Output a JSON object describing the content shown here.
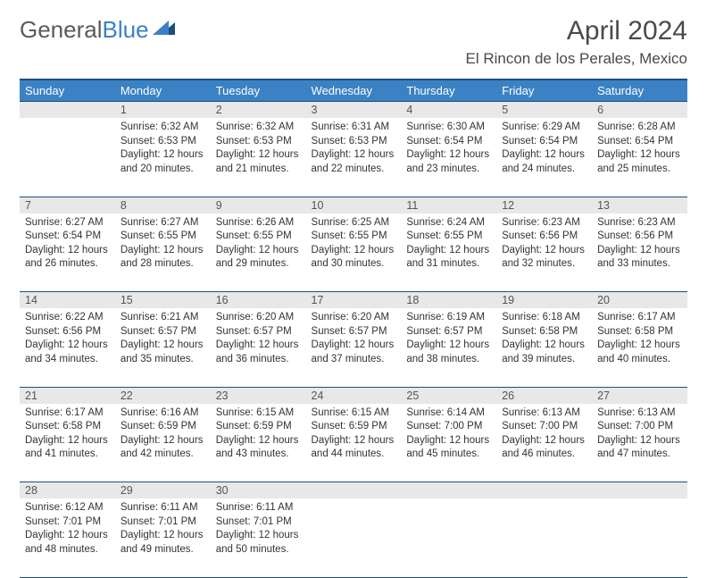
{
  "brand": {
    "general": "General",
    "blue": "Blue"
  },
  "title": "April 2024",
  "location": "El Rincon de los Perales, Mexico",
  "colors": {
    "header_bg": "#3b82c4",
    "header_border": "#1f4e7a",
    "daynum_bg": "#e8e8e8",
    "text": "#333333",
    "logo_gray": "#5a5a5a",
    "logo_blue": "#3b82c4"
  },
  "weekdays": [
    "Sunday",
    "Monday",
    "Tuesday",
    "Wednesday",
    "Thursday",
    "Friday",
    "Saturday"
  ],
  "weeks": [
    {
      "nums": [
        "",
        "1",
        "2",
        "3",
        "4",
        "5",
        "6"
      ],
      "cells": [
        null,
        {
          "sunrise": "Sunrise: 6:32 AM",
          "sunset": "Sunset: 6:53 PM",
          "daylight": "Daylight: 12 hours and 20 minutes."
        },
        {
          "sunrise": "Sunrise: 6:32 AM",
          "sunset": "Sunset: 6:53 PM",
          "daylight": "Daylight: 12 hours and 21 minutes."
        },
        {
          "sunrise": "Sunrise: 6:31 AM",
          "sunset": "Sunset: 6:53 PM",
          "daylight": "Daylight: 12 hours and 22 minutes."
        },
        {
          "sunrise": "Sunrise: 6:30 AM",
          "sunset": "Sunset: 6:54 PM",
          "daylight": "Daylight: 12 hours and 23 minutes."
        },
        {
          "sunrise": "Sunrise: 6:29 AM",
          "sunset": "Sunset: 6:54 PM",
          "daylight": "Daylight: 12 hours and 24 minutes."
        },
        {
          "sunrise": "Sunrise: 6:28 AM",
          "sunset": "Sunset: 6:54 PM",
          "daylight": "Daylight: 12 hours and 25 minutes."
        }
      ]
    },
    {
      "nums": [
        "7",
        "8",
        "9",
        "10",
        "11",
        "12",
        "13"
      ],
      "cells": [
        {
          "sunrise": "Sunrise: 6:27 AM",
          "sunset": "Sunset: 6:54 PM",
          "daylight": "Daylight: 12 hours and 26 minutes."
        },
        {
          "sunrise": "Sunrise: 6:27 AM",
          "sunset": "Sunset: 6:55 PM",
          "daylight": "Daylight: 12 hours and 28 minutes."
        },
        {
          "sunrise": "Sunrise: 6:26 AM",
          "sunset": "Sunset: 6:55 PM",
          "daylight": "Daylight: 12 hours and 29 minutes."
        },
        {
          "sunrise": "Sunrise: 6:25 AM",
          "sunset": "Sunset: 6:55 PM",
          "daylight": "Daylight: 12 hours and 30 minutes."
        },
        {
          "sunrise": "Sunrise: 6:24 AM",
          "sunset": "Sunset: 6:55 PM",
          "daylight": "Daylight: 12 hours and 31 minutes."
        },
        {
          "sunrise": "Sunrise: 6:23 AM",
          "sunset": "Sunset: 6:56 PM",
          "daylight": "Daylight: 12 hours and 32 minutes."
        },
        {
          "sunrise": "Sunrise: 6:23 AM",
          "sunset": "Sunset: 6:56 PM",
          "daylight": "Daylight: 12 hours and 33 minutes."
        }
      ]
    },
    {
      "nums": [
        "14",
        "15",
        "16",
        "17",
        "18",
        "19",
        "20"
      ],
      "cells": [
        {
          "sunrise": "Sunrise: 6:22 AM",
          "sunset": "Sunset: 6:56 PM",
          "daylight": "Daylight: 12 hours and 34 minutes."
        },
        {
          "sunrise": "Sunrise: 6:21 AM",
          "sunset": "Sunset: 6:57 PM",
          "daylight": "Daylight: 12 hours and 35 minutes."
        },
        {
          "sunrise": "Sunrise: 6:20 AM",
          "sunset": "Sunset: 6:57 PM",
          "daylight": "Daylight: 12 hours and 36 minutes."
        },
        {
          "sunrise": "Sunrise: 6:20 AM",
          "sunset": "Sunset: 6:57 PM",
          "daylight": "Daylight: 12 hours and 37 minutes."
        },
        {
          "sunrise": "Sunrise: 6:19 AM",
          "sunset": "Sunset: 6:57 PM",
          "daylight": "Daylight: 12 hours and 38 minutes."
        },
        {
          "sunrise": "Sunrise: 6:18 AM",
          "sunset": "Sunset: 6:58 PM",
          "daylight": "Daylight: 12 hours and 39 minutes."
        },
        {
          "sunrise": "Sunrise: 6:17 AM",
          "sunset": "Sunset: 6:58 PM",
          "daylight": "Daylight: 12 hours and 40 minutes."
        }
      ]
    },
    {
      "nums": [
        "21",
        "22",
        "23",
        "24",
        "25",
        "26",
        "27"
      ],
      "cells": [
        {
          "sunrise": "Sunrise: 6:17 AM",
          "sunset": "Sunset: 6:58 PM",
          "daylight": "Daylight: 12 hours and 41 minutes."
        },
        {
          "sunrise": "Sunrise: 6:16 AM",
          "sunset": "Sunset: 6:59 PM",
          "daylight": "Daylight: 12 hours and 42 minutes."
        },
        {
          "sunrise": "Sunrise: 6:15 AM",
          "sunset": "Sunset: 6:59 PM",
          "daylight": "Daylight: 12 hours and 43 minutes."
        },
        {
          "sunrise": "Sunrise: 6:15 AM",
          "sunset": "Sunset: 6:59 PM",
          "daylight": "Daylight: 12 hours and 44 minutes."
        },
        {
          "sunrise": "Sunrise: 6:14 AM",
          "sunset": "Sunset: 7:00 PM",
          "daylight": "Daylight: 12 hours and 45 minutes."
        },
        {
          "sunrise": "Sunrise: 6:13 AM",
          "sunset": "Sunset: 7:00 PM",
          "daylight": "Daylight: 12 hours and 46 minutes."
        },
        {
          "sunrise": "Sunrise: 6:13 AM",
          "sunset": "Sunset: 7:00 PM",
          "daylight": "Daylight: 12 hours and 47 minutes."
        }
      ]
    },
    {
      "nums": [
        "28",
        "29",
        "30",
        "",
        "",
        "",
        ""
      ],
      "cells": [
        {
          "sunrise": "Sunrise: 6:12 AM",
          "sunset": "Sunset: 7:01 PM",
          "daylight": "Daylight: 12 hours and 48 minutes."
        },
        {
          "sunrise": "Sunrise: 6:11 AM",
          "sunset": "Sunset: 7:01 PM",
          "daylight": "Daylight: 12 hours and 49 minutes."
        },
        {
          "sunrise": "Sunrise: 6:11 AM",
          "sunset": "Sunset: 7:01 PM",
          "daylight": "Daylight: 12 hours and 50 minutes."
        },
        null,
        null,
        null,
        null
      ]
    }
  ]
}
